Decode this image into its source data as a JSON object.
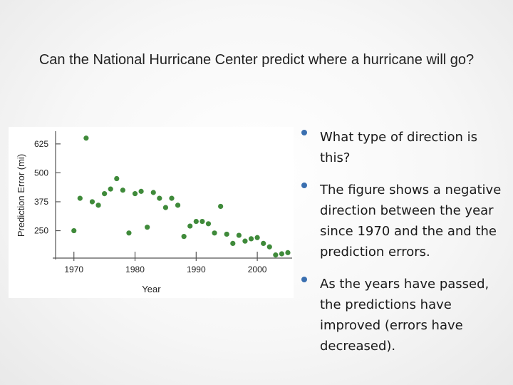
{
  "slide": {
    "title": "Can the National Hurricane Center predict where a hurricane will go?",
    "bullets": [
      "What type of direction is this?",
      "The figure shows a negative direction between the year since 1970 and the and the prediction errors.",
      "As the years have passed, the predictions have improved (errors have decreased)."
    ]
  },
  "colors": {
    "point": "#3f8a3a",
    "axis": "#555555",
    "bullet": "#3a6fb0"
  },
  "chart_data": {
    "type": "scatter",
    "title": "",
    "xlabel": "Year",
    "ylabel": "Prediction Error (mi)",
    "xlim": [
      1967,
      2005
    ],
    "ylim": [
      150,
      680
    ],
    "xticks": [
      1970,
      1980,
      1990,
      2000
    ],
    "xtick_labels": [
      "1970",
      "1980",
      "1990",
      "2000"
    ],
    "yticks": [
      250,
      375,
      500,
      625
    ],
    "ytick_labels": [
      "250",
      "375",
      "500",
      "625"
    ],
    "points": [
      {
        "x": 1970,
        "y": 250
      },
      {
        "x": 1971,
        "y": 390
      },
      {
        "x": 1972,
        "y": 650
      },
      {
        "x": 1973,
        "y": 375
      },
      {
        "x": 1974,
        "y": 360
      },
      {
        "x": 1975,
        "y": 410
      },
      {
        "x": 1976,
        "y": 430
      },
      {
        "x": 1977,
        "y": 475
      },
      {
        "x": 1978,
        "y": 425
      },
      {
        "x": 1979,
        "y": 240
      },
      {
        "x": 1980,
        "y": 410
      },
      {
        "x": 1981,
        "y": 420
      },
      {
        "x": 1982,
        "y": 265
      },
      {
        "x": 1983,
        "y": 415
      },
      {
        "x": 1984,
        "y": 390
      },
      {
        "x": 1985,
        "y": 350
      },
      {
        "x": 1986,
        "y": 390
      },
      {
        "x": 1987,
        "y": 360
      },
      {
        "x": 1988,
        "y": 225
      },
      {
        "x": 1989,
        "y": 270
      },
      {
        "x": 1990,
        "y": 290
      },
      {
        "x": 1991,
        "y": 290
      },
      {
        "x": 1992,
        "y": 280
      },
      {
        "x": 1993,
        "y": 240
      },
      {
        "x": 1994,
        "y": 355
      },
      {
        "x": 1995,
        "y": 235
      },
      {
        "x": 1996,
        "y": 195
      },
      {
        "x": 1997,
        "y": 230
      },
      {
        "x": 1998,
        "y": 205
      },
      {
        "x": 1999,
        "y": 215
      },
      {
        "x": 2000,
        "y": 220
      },
      {
        "x": 2001,
        "y": 195
      },
      {
        "x": 2002,
        "y": 180
      },
      {
        "x": 2003,
        "y": 145
      },
      {
        "x": 2004,
        "y": 150
      },
      {
        "x": 2005,
        "y": 155
      }
    ]
  }
}
